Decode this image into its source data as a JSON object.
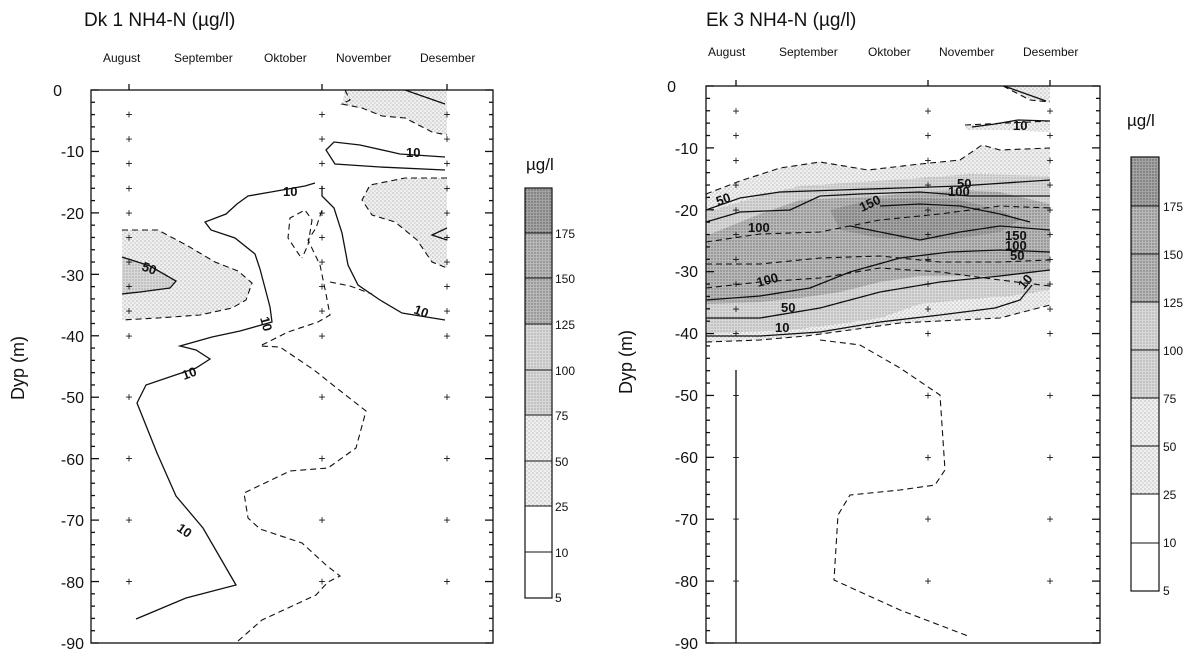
{
  "chart_data": [
    {
      "type": "heatmap",
      "title": "Dk 1 NH4-N (µg/l)",
      "x_labels": [
        "August",
        "September",
        "Oktober",
        "November",
        "Desember"
      ],
      "ylabel": "Dyp (m)",
      "ylim": [
        -90,
        0
      ],
      "yticks": [
        0,
        -10,
        -20,
        -30,
        -40,
        -50,
        -60,
        -70,
        -80,
        -90
      ],
      "colorbar_unit": "µg/l",
      "colorbar_levels": [
        5,
        10,
        25,
        50,
        75,
        100,
        125,
        150,
        175
      ],
      "contour_labels": [
        "10",
        "10",
        "10",
        "10",
        "10",
        "50"
      ],
      "sample_depths": [
        [
          -4,
          -8,
          -12,
          -16,
          -20,
          -24,
          -28,
          -32,
          -36,
          -40,
          -50,
          -60,
          -70,
          -80
        ],
        [
          -4,
          -8,
          -12,
          -16,
          -20,
          -24,
          -28,
          -32,
          -36,
          -40,
          -50,
          -60,
          -70,
          -80
        ],
        [
          -4,
          -8,
          -12,
          -16,
          -20,
          -24,
          -28,
          -32,
          -36,
          -40,
          -50,
          -60,
          -70,
          -80
        ]
      ],
      "grid": false
    },
    {
      "type": "heatmap",
      "title": "Ek 3 NH4-N (µg/l)",
      "x_labels": [
        "August",
        "September",
        "Oktober",
        "November",
        "Desember"
      ],
      "ylabel": "Dyp (m)",
      "ylim": [
        -90,
        0
      ],
      "yticks": [
        0,
        -10,
        -20,
        -30,
        -40,
        -50,
        -60,
        -70,
        -80,
        -90
      ],
      "colorbar_unit": "µg/l",
      "colorbar_levels": [
        5,
        10,
        25,
        50,
        75,
        100,
        125,
        150,
        175
      ],
      "contour_labels": [
        "10",
        "50",
        "100",
        "150",
        "100",
        "50",
        "150",
        "100",
        "50",
        "100",
        "50",
        "10",
        "10"
      ],
      "sample_depths": [
        [
          -4,
          -8,
          -12,
          -16,
          -20,
          -24,
          -28,
          -32,
          -36,
          -40,
          -50,
          -60,
          -70,
          -80
        ],
        [
          -4,
          -8,
          -12,
          -16,
          -20,
          -24,
          -28,
          -32,
          -36,
          -40,
          -50,
          -60,
          -70,
          -80
        ],
        [
          -4,
          -8,
          -12,
          -16,
          -20,
          -24,
          -28,
          -32,
          -36,
          -40,
          -50,
          -60,
          -70,
          -80
        ]
      ],
      "grid": false
    }
  ]
}
